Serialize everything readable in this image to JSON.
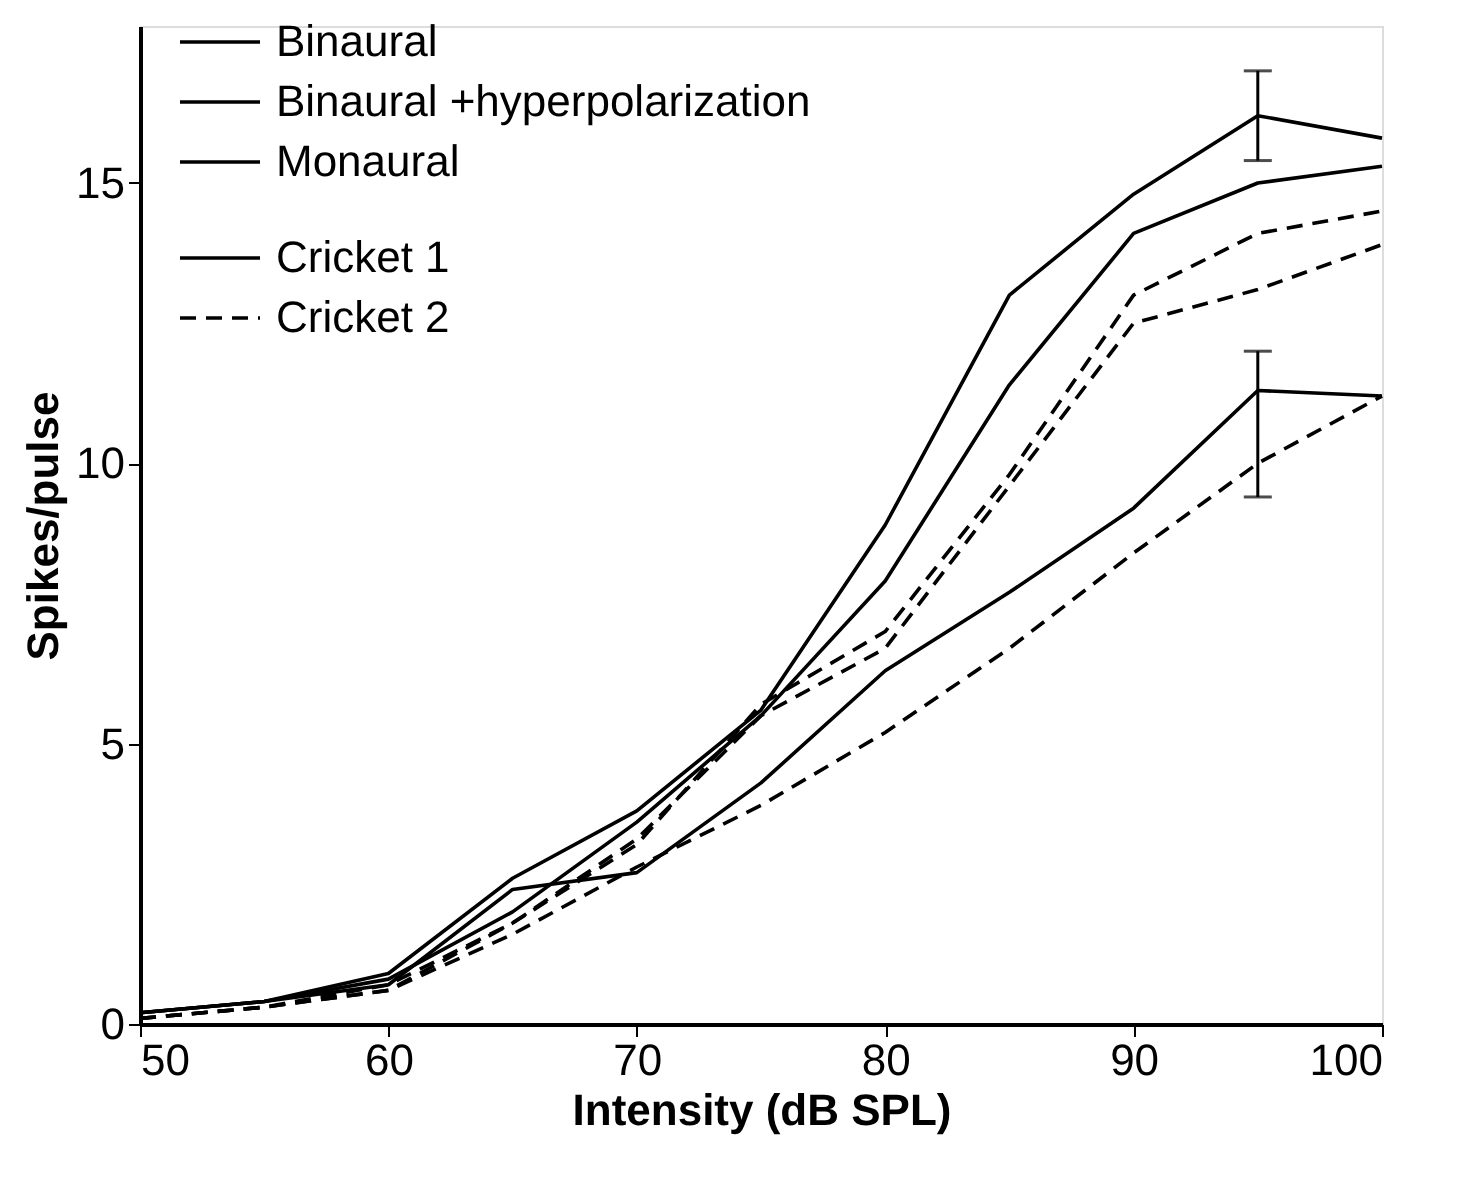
{
  "chart_data": {
    "type": "line",
    "xlabel": "Intensity (dB SPL)",
    "ylabel": "Spikes/pulse",
    "x": [
      50,
      55,
      60,
      65,
      70,
      75,
      80,
      85,
      90,
      95,
      100
    ],
    "xlim": [
      50,
      100
    ],
    "xticks": [
      50,
      60,
      70,
      80,
      90,
      100
    ],
    "ylim": [
      0,
      17.8
    ],
    "yticks": [
      0,
      5,
      10,
      15
    ],
    "grid": false,
    "legend": "top left",
    "marker": "none",
    "annotations": [
      "Cricket 1",
      "Cricket 2"
    ],
    "series": [
      {
        "name": "Binaural",
        "color": "#000000",
        "line_style": "solid",
        "values": [
          0.2,
          0.4,
          0.9,
          2.6,
          3.8,
          5.6,
          8.9,
          13.0,
          14.8,
          16.2,
          15.8
        ],
        "errors": [
          null,
          null,
          null,
          null,
          null,
          null,
          null,
          null,
          null,
          [
            15.4,
            17.0
          ],
          null
        ]
      },
      {
        "name": "Binaural +hyperpolarization",
        "color": "#000000",
        "line_style": "solid",
        "values": [
          0.2,
          0.4,
          0.8,
          2.0,
          3.6,
          5.5,
          7.9,
          11.4,
          14.1,
          15.0,
          15.3
        ]
      },
      {
        "name": "Monaural",
        "color": "#000000",
        "line_style": "solid",
        "values": [
          0.2,
          0.4,
          0.7,
          2.4,
          2.7,
          4.3,
          6.3,
          7.7,
          9.2,
          11.3,
          11.2
        ],
        "errors": [
          null,
          null,
          null,
          null,
          null,
          null,
          null,
          null,
          null,
          [
            9.4,
            12.0
          ],
          null
        ]
      },
      {
        "color": "#000000",
        "line_style": "dashed",
        "values": [
          0.1,
          0.3,
          0.6,
          1.8,
          3.2,
          5.7,
          7.0,
          9.8,
          13.0,
          14.1,
          14.5
        ]
      },
      {
        "color": "#000000",
        "line_style": "dashed",
        "values": [
          0.1,
          0.3,
          0.7,
          1.8,
          3.3,
          5.5,
          6.7,
          9.6,
          12.5,
          13.1,
          13.9
        ]
      },
      {
        "color": "#000000",
        "line_style": "dashed",
        "values": [
          0.1,
          0.3,
          0.6,
          1.6,
          2.8,
          3.9,
          5.2,
          6.7,
          8.4,
          10.0,
          11.2
        ]
      }
    ]
  }
}
